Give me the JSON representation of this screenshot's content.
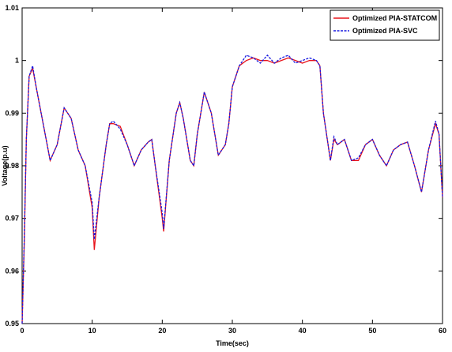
{
  "chart_data": {
    "type": "line",
    "xlabel": "Time(sec)",
    "ylabel": "Voltage(p.u)",
    "x": [
      0,
      0.3,
      0.6,
      1,
      1.5,
      2,
      3,
      4,
      5,
      6,
      7,
      8,
      9,
      10,
      10.3,
      11,
      12,
      12.5,
      13,
      14,
      15,
      16,
      17,
      18,
      18.5,
      19,
      20,
      20.2,
      21,
      22,
      22.5,
      23,
      24,
      24.5,
      25,
      26,
      27,
      28,
      29,
      29.5,
      30,
      31,
      32,
      33,
      34,
      35,
      36,
      37,
      38,
      39,
      40,
      41,
      42,
      42.5,
      43,
      44,
      44.5,
      45,
      46,
      47,
      48,
      49,
      50,
      51,
      52,
      53,
      54,
      55,
      56,
      57,
      58,
      59,
      59.5,
      60
    ],
    "series": [
      {
        "name": "Optimized PIA-STATCOM",
        "color": "#e8141c",
        "dash": false,
        "values": [
          0.95,
          0.965,
          0.985,
          0.997,
          0.9985,
          0.995,
          0.988,
          0.981,
          0.984,
          0.991,
          0.989,
          0.983,
          0.98,
          0.972,
          0.964,
          0.974,
          0.984,
          0.988,
          0.988,
          0.9875,
          0.984,
          0.98,
          0.983,
          0.9845,
          0.985,
          0.98,
          0.97,
          0.9675,
          0.981,
          0.99,
          0.992,
          0.989,
          0.981,
          0.98,
          0.986,
          0.994,
          0.99,
          0.982,
          0.984,
          0.988,
          0.995,
          0.999,
          1.0,
          1.0005,
          1.0,
          1.0,
          0.9995,
          1.0,
          1.0005,
          1.0,
          0.9995,
          1.0,
          1.0,
          0.999,
          0.99,
          0.981,
          0.985,
          0.984,
          0.985,
          0.981,
          0.981,
          0.984,
          0.985,
          0.982,
          0.98,
          0.983,
          0.984,
          0.9845,
          0.98,
          0.975,
          0.983,
          0.988,
          0.986,
          0.974
        ]
      },
      {
        "name": "Optimized PIA-SVC",
        "color": "#1a1ae0",
        "dash": true,
        "values": [
          0.95,
          0.966,
          0.985,
          0.997,
          0.999,
          0.995,
          0.988,
          0.981,
          0.984,
          0.991,
          0.989,
          0.983,
          0.98,
          0.973,
          0.966,
          0.974,
          0.984,
          0.988,
          0.9885,
          0.987,
          0.984,
          0.98,
          0.983,
          0.9845,
          0.985,
          0.98,
          0.971,
          0.968,
          0.981,
          0.99,
          0.992,
          0.989,
          0.981,
          0.98,
          0.986,
          0.994,
          0.99,
          0.982,
          0.984,
          0.988,
          0.995,
          0.999,
          1.001,
          1.0005,
          0.9995,
          1.001,
          0.9995,
          1.0005,
          1.001,
          0.9995,
          1.0,
          1.0005,
          1.0,
          0.999,
          0.99,
          0.981,
          0.9855,
          0.984,
          0.985,
          0.981,
          0.9815,
          0.984,
          0.985,
          0.982,
          0.98,
          0.983,
          0.984,
          0.9845,
          0.98,
          0.975,
          0.983,
          0.9885,
          0.986,
          0.974
        ]
      }
    ],
    "xlim": [
      0,
      60
    ],
    "xticks": [
      0,
      10,
      20,
      30,
      40,
      50,
      60
    ],
    "ylim": [
      0.95,
      1.01
    ],
    "yticks": [
      0.95,
      0.96,
      0.97,
      0.98,
      0.99,
      1,
      1.01
    ],
    "legend": "top-right",
    "grid": false
  }
}
